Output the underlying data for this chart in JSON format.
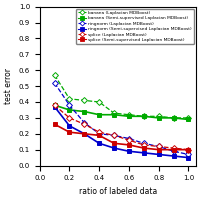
{
  "x": [
    0.1,
    0.2,
    0.3,
    0.4,
    0.5,
    0.6,
    0.7,
    0.8,
    0.9,
    1.0
  ],
  "banana_lap": [
    0.57,
    0.42,
    0.41,
    0.4,
    0.33,
    0.32,
    0.31,
    0.31,
    0.3,
    0.3
  ],
  "banana_semi": [
    0.38,
    0.35,
    0.34,
    0.32,
    0.32,
    0.31,
    0.31,
    0.3,
    0.3,
    0.29
  ],
  "ringnorm_lap": [
    0.52,
    0.38,
    0.27,
    0.2,
    0.19,
    0.17,
    0.14,
    0.12,
    0.09,
    0.07
  ],
  "ringnorm_semi": [
    0.37,
    0.25,
    0.2,
    0.14,
    0.11,
    0.09,
    0.08,
    0.07,
    0.06,
    0.05
  ],
  "splice_lap": [
    0.38,
    0.3,
    0.26,
    0.21,
    0.19,
    0.16,
    0.13,
    0.12,
    0.11,
    0.1
  ],
  "splice_semi": [
    0.26,
    0.21,
    0.2,
    0.19,
    0.14,
    0.13,
    0.11,
    0.1,
    0.1,
    0.1
  ],
  "color_banana": "#00aa00",
  "color_ringnorm": "#0000cc",
  "color_splice": "#cc0000",
  "xlabel": "ratio of labeled data",
  "ylabel": "test error",
  "xlim": [
    0,
    1.05
  ],
  "ylim": [
    0,
    1.0
  ],
  "xticks": [
    0,
    0.2,
    0.4,
    0.6,
    0.8,
    1.0
  ],
  "yticks": [
    0,
    0.1,
    0.2,
    0.3,
    0.4,
    0.5,
    0.6,
    0.7,
    0.8,
    0.9,
    1.0
  ],
  "legend_entries": [
    "banana (Laplacian MDBoost)",
    "banana (Semi-supervised Laplacian MDBoost)",
    "ringnorm (Laplacian MDBoost)",
    "ringnorm (Semi-supervised Laplacian MDBoost)",
    "splice (Laplacian MDBoost)",
    "splice (Semi-supervised Laplacian MDBoost)"
  ]
}
